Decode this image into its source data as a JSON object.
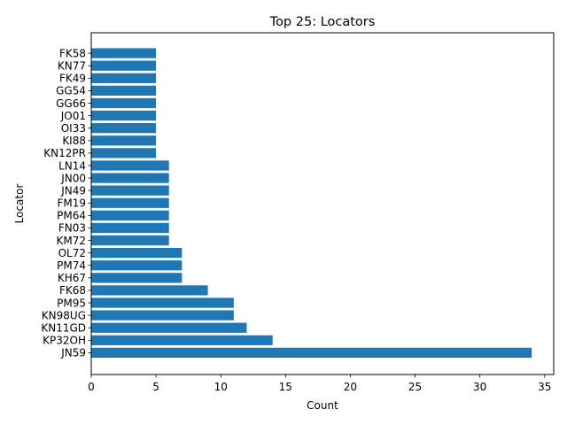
{
  "chart_data": {
    "type": "bar",
    "orientation": "horizontal",
    "title": "Top 25: Locators",
    "xlabel": "Count",
    "ylabel": "Locator",
    "xlim": [
      0,
      35.7
    ],
    "xticks": [
      0,
      5,
      10,
      15,
      20,
      25,
      30,
      35
    ],
    "grid": false,
    "bar_color": "#1f77b4",
    "categories": [
      "JN59",
      "KP32OH",
      "KN11GD",
      "KN98UG",
      "PM95",
      "FK68",
      "KH67",
      "PM74",
      "OL72",
      "KM72",
      "FN03",
      "PM64",
      "FM19",
      "JN49",
      "JN00",
      "LN14",
      "KN12PR",
      "KI88",
      "OI33",
      "JO01",
      "GG66",
      "GG54",
      "FK49",
      "KN77",
      "FK58"
    ],
    "values": [
      34,
      14,
      12,
      11,
      11,
      9,
      7,
      7,
      7,
      6,
      6,
      6,
      6,
      6,
      6,
      6,
      5,
      5,
      5,
      5,
      5,
      5,
      5,
      5,
      5
    ]
  }
}
